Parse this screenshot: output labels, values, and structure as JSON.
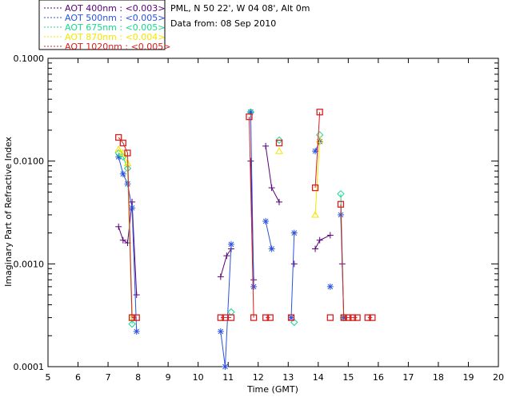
{
  "info": {
    "location": "PML, N 50 22', W 04 08', Alt 0m",
    "date": "Data from: 08 Sep 2010"
  },
  "chart_data": {
    "type": "line",
    "xlabel": "Time (GMT)",
    "ylabel": "Imaginary Part of Refractive Index",
    "xlim": [
      5,
      20
    ],
    "ylim": [
      0.0001,
      0.1
    ],
    "yscale": "log",
    "grid": false,
    "legend_placement": "top-left (outside plot)",
    "x_ticks": [
      "5",
      "6",
      "7",
      "8",
      "9",
      "10",
      "11",
      "12",
      "13",
      "14",
      "15",
      "16",
      "17",
      "18",
      "19",
      "20"
    ],
    "y_ticks": [
      "0.0001",
      "0.0010",
      "0.0100",
      "0.1000"
    ],
    "series": [
      {
        "name": "AOT  400nm : <0.003>",
        "color": "#5a0078",
        "marker": "plus",
        "segments": [
          [
            [
              7.35,
              0.0023
            ],
            [
              7.5,
              0.0017
            ],
            [
              7.65,
              0.0016
            ],
            [
              7.8,
              0.004
            ],
            [
              7.95,
              0.0005
            ]
          ],
          [
            [
              10.75,
              0.00075
            ],
            [
              10.95,
              0.0012
            ],
            [
              11.1,
              0.0014
            ]
          ],
          [
            [
              11.75,
              0.01
            ],
            [
              11.85,
              0.0007
            ]
          ],
          [
            [
              12.25,
              0.014
            ],
            [
              12.45,
              0.0055
            ],
            [
              12.7,
              0.004
            ]
          ],
          [
            [
              13.2,
              0.001
            ]
          ],
          [
            [
              13.9,
              0.0014
            ],
            [
              14.05,
              0.0017
            ],
            [
              14.4,
              0.0019
            ]
          ],
          [
            [
              14.05,
              0.0155
            ]
          ],
          [
            [
              14.8,
              0.001
            ]
          ]
        ]
      },
      {
        "name": "AOT  500nm : <0.005>",
        "color": "#2a52e0",
        "marker": "asterisk",
        "segments": [
          [
            [
              7.35,
              0.011
            ],
            [
              7.5,
              0.0075
            ],
            [
              7.65,
              0.006
            ],
            [
              7.8,
              0.0035
            ],
            [
              7.95,
              0.00022
            ]
          ],
          [
            [
              10.75,
              0.00022
            ],
            [
              10.9,
              0.0001
            ],
            [
              11.1,
              0.00155
            ]
          ],
          [
            [
              11.75,
              0.03
            ],
            [
              11.85,
              0.0006
            ]
          ],
          [
            [
              12.25,
              0.0026
            ],
            [
              12.45,
              0.0014
            ]
          ],
          [
            [
              13.1,
              0.0003
            ],
            [
              13.2,
              0.002
            ]
          ],
          [
            [
              14.4,
              0.0006
            ]
          ],
          [
            [
              13.9,
              0.0125
            ],
            [
              14.05,
              0.0155
            ]
          ],
          [
            [
              14.75,
              0.003
            ],
            [
              14.85,
              0.0003
            ]
          ]
        ]
      },
      {
        "name": "AOT  675nm : <0.005>",
        "color": "#19d98f",
        "marker": "diamond",
        "segments": [
          [
            [
              7.35,
              0.012
            ],
            [
              7.5,
              0.011
            ],
            [
              7.65,
              0.0085
            ],
            [
              7.8,
              0.00026
            ]
          ],
          [
            [
              11.1,
              0.00034
            ]
          ],
          [
            [
              11.75,
              0.03
            ]
          ],
          [
            [
              12.7,
              0.016
            ]
          ],
          [
            [
              13.2,
              0.00027
            ]
          ],
          [
            [
              14.05,
              0.018
            ]
          ],
          [
            [
              14.75,
              0.0048
            ],
            [
              14.85,
              0.0003
            ]
          ]
        ]
      },
      {
        "name": "AOT  870nm : <0.004>",
        "color": "#f0e800",
        "marker": "triangle",
        "segments": [
          [
            [
              7.35,
              0.013
            ],
            [
              7.5,
              0.012
            ],
            [
              7.65,
              0.0095
            ],
            [
              7.8,
              0.0003
            ]
          ],
          [
            [
              12.7,
              0.0125
            ]
          ],
          [
            [
              13.9,
              0.003
            ],
            [
              14.05,
              0.016
            ]
          ]
        ]
      },
      {
        "name": "AOT 1020nm : <0.005>",
        "color": "#d82020",
        "marker": "square",
        "segments": [
          [
            [
              7.35,
              0.017
            ],
            [
              7.5,
              0.015
            ],
            [
              7.65,
              0.012
            ],
            [
              7.8,
              0.0003
            ],
            [
              7.95,
              0.0003
            ]
          ],
          [
            [
              10.75,
              0.0003
            ],
            [
              10.9,
              0.0003
            ],
            [
              11.1,
              0.0003
            ]
          ],
          [
            [
              11.7,
              0.027
            ],
            [
              11.85,
              0.0003
            ]
          ],
          [
            [
              12.25,
              0.0003
            ],
            [
              12.4,
              0.0003
            ]
          ],
          [
            [
              12.7,
              0.015
            ]
          ],
          [
            [
              13.1,
              0.0003
            ]
          ],
          [
            [
              13.9,
              0.0055
            ],
            [
              14.05,
              0.03
            ]
          ],
          [
            [
              14.4,
              0.0003
            ]
          ],
          [
            [
              14.75,
              0.0038
            ],
            [
              14.85,
              0.0003
            ],
            [
              15.0,
              0.0003
            ],
            [
              15.15,
              0.0003
            ],
            [
              15.3,
              0.0003
            ]
          ],
          [
            [
              15.65,
              0.0003
            ],
            [
              15.8,
              0.0003
            ]
          ]
        ]
      }
    ]
  }
}
